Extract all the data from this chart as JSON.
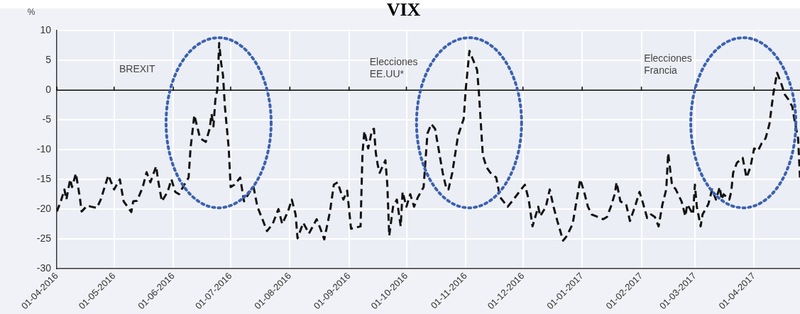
{
  "chart_data": {
    "type": "line",
    "title": "VIX",
    "ylabel": "%",
    "grid": true,
    "legend": false,
    "marker": "none",
    "line_style": "dashed",
    "xlim": [
      "2016-04-01",
      "2017-04-25"
    ],
    "xticks": [
      {
        "value": "2016-04-01",
        "label": "01-04-2016"
      },
      {
        "value": "2016-05-01",
        "label": "01-05-2016"
      },
      {
        "value": "2016-06-01",
        "label": "01-06-2016"
      },
      {
        "value": "2016-07-01",
        "label": "01-07-2016"
      },
      {
        "value": "2016-08-01",
        "label": "01-08-2016"
      },
      {
        "value": "2016-09-01",
        "label": "01-09-2016"
      },
      {
        "value": "2016-10-01",
        "label": "01-10-2016"
      },
      {
        "value": "2016-11-01",
        "label": "01-11-2016"
      },
      {
        "value": "2016-12-01",
        "label": "01-12-2016"
      },
      {
        "value": "2017-01-01",
        "label": "01-01-2017"
      },
      {
        "value": "2017-02-01",
        "label": "01-02-2017"
      },
      {
        "value": "2017-03-01",
        "label": "01-03-2017"
      },
      {
        "value": "2017-04-01",
        "label": "01-04-2017"
      }
    ],
    "ylim": [
      -30,
      10
    ],
    "yticks": [
      -30,
      -25,
      -20,
      -15,
      -10,
      -5,
      0,
      5,
      10
    ],
    "ref_lines": [
      {
        "axis": "y",
        "value": 0,
        "color": "#000000"
      }
    ],
    "annotations": [
      "BREXIT",
      "Elecciones\nEE.UU*",
      "Elecciones\nFrancia"
    ],
    "x": [
      "2016-04-01",
      "2016-04-03",
      "2016-04-05",
      "2016-04-06",
      "2016-04-08",
      "2016-04-09",
      "2016-04-11",
      "2016-04-13",
      "2016-04-14",
      "2016-04-17",
      "2016-04-19",
      "2016-04-22",
      "2016-04-24",
      "2016-04-28",
      "2016-05-01",
      "2016-05-04",
      "2016-05-06",
      "2016-05-10",
      "2016-05-11",
      "2016-05-13",
      "2016-05-16",
      "2016-05-18",
      "2016-05-20",
      "2016-05-23",
      "2016-05-24",
      "2016-05-26",
      "2016-05-29",
      "2016-05-31",
      "2016-06-02",
      "2016-06-04",
      "2016-06-06",
      "2016-06-09",
      "2016-06-10",
      "2016-06-12",
      "2016-06-15",
      "2016-06-18",
      "2016-06-20",
      "2016-06-21",
      "2016-06-22",
      "2016-06-23",
      "2016-06-24",
      "2016-06-25",
      "2016-06-26",
      "2016-06-27",
      "2016-06-28",
      "2016-06-30",
      "2016-07-01",
      "2016-07-03",
      "2016-07-06",
      "2016-07-08",
      "2016-07-11",
      "2016-07-13",
      "2016-07-15",
      "2016-07-18",
      "2016-07-20",
      "2016-07-23",
      "2016-07-26",
      "2016-07-28",
      "2016-07-31",
      "2016-08-02",
      "2016-08-04",
      "2016-08-05",
      "2016-08-08",
      "2016-08-11",
      "2016-08-15",
      "2016-08-17",
      "2016-08-19",
      "2016-08-22",
      "2016-08-24",
      "2016-08-26",
      "2016-08-29",
      "2016-08-31",
      "2016-09-02",
      "2016-09-07",
      "2016-09-08",
      "2016-09-09",
      "2016-09-11",
      "2016-09-13",
      "2016-09-14",
      "2016-09-15",
      "2016-09-16",
      "2016-09-17",
      "2016-09-20",
      "2016-09-21",
      "2016-09-22",
      "2016-09-24",
      "2016-09-26",
      "2016-09-28",
      "2016-09-29",
      "2016-10-01",
      "2016-10-03",
      "2016-10-05",
      "2016-10-07",
      "2016-10-10",
      "2016-10-12",
      "2016-10-14",
      "2016-10-16",
      "2016-10-18",
      "2016-10-20",
      "2016-10-22",
      "2016-10-23",
      "2016-10-25",
      "2016-10-28",
      "2016-10-31",
      "2016-11-01",
      "2016-11-03",
      "2016-11-05",
      "2016-11-07",
      "2016-11-08",
      "2016-11-10",
      "2016-11-12",
      "2016-11-14",
      "2016-11-17",
      "2016-11-19",
      "2016-11-23",
      "2016-11-26",
      "2016-11-30",
      "2016-12-02",
      "2016-12-04",
      "2016-12-06",
      "2016-12-09",
      "2016-12-10",
      "2016-12-13",
      "2016-12-15",
      "2016-12-17",
      "2016-12-19",
      "2016-12-22",
      "2016-12-24",
      "2016-12-27",
      "2016-12-29",
      "2016-12-31",
      "2017-01-02",
      "2017-01-04",
      "2017-01-06",
      "2017-01-09",
      "2017-01-12",
      "2017-01-14",
      "2017-01-16",
      "2017-01-18",
      "2017-01-19",
      "2017-01-21",
      "2017-01-24",
      "2017-01-26",
      "2017-01-29",
      "2017-01-31",
      "2017-02-02",
      "2017-02-04",
      "2017-02-06",
      "2017-02-08",
      "2017-02-10",
      "2017-02-12",
      "2017-02-14",
      "2017-02-15",
      "2017-02-17",
      "2017-02-19",
      "2017-02-22",
      "2017-02-24",
      "2017-02-25",
      "2017-02-28",
      "2017-03-01",
      "2017-03-02",
      "2017-03-04",
      "2017-03-05",
      "2017-03-08",
      "2017-03-10",
      "2017-03-12",
      "2017-03-14",
      "2017-03-15",
      "2017-03-16",
      "2017-03-19",
      "2017-03-20",
      "2017-03-21",
      "2017-03-23",
      "2017-03-26",
      "2017-03-28",
      "2017-03-30",
      "2017-04-01",
      "2017-04-03",
      "2017-04-05",
      "2017-04-07",
      "2017-04-09",
      "2017-04-11",
      "2017-04-13",
      "2017-04-15",
      "2017-04-17",
      "2017-04-19",
      "2017-04-21",
      "2017-04-22",
      "2017-04-24",
      "2017-04-25"
    ],
    "series": [
      {
        "color": "#111111",
        "values": [
          -20.4,
          -18.8,
          -16.7,
          -18.4,
          -15,
          -16.3,
          -14,
          -17.9,
          -20.4,
          -19.4,
          -19.6,
          -19.8,
          -18.4,
          -14.3,
          -16.7,
          -15,
          -18.7,
          -20.5,
          -18.7,
          -18.6,
          -16.3,
          -13.8,
          -15.5,
          -12.8,
          -15.1,
          -18.7,
          -17.1,
          -15,
          -17.1,
          -17.5,
          -16.3,
          -14.7,
          -9.8,
          -4.2,
          -8.1,
          -8.7,
          -6.5,
          -4,
          -6.1,
          -1.6,
          0,
          7.9,
          4.6,
          2.5,
          -2.8,
          -9.8,
          -16.3,
          -15.9,
          -14.7,
          -18.7,
          -17.1,
          -16.3,
          -19.6,
          -22,
          -23.7,
          -22.5,
          -20,
          -22.5,
          -20.4,
          -18.4,
          -20.9,
          -24.9,
          -22.3,
          -24.1,
          -21.7,
          -23.3,
          -25.1,
          -20.4,
          -15.9,
          -15.5,
          -18.4,
          -16.9,
          -23.3,
          -22.9,
          -10.6,
          -6.9,
          -9.8,
          -6.7,
          -6.5,
          -10.6,
          -12.6,
          -13.9,
          -11.8,
          -15.9,
          -24.5,
          -19.6,
          -18.4,
          -22.9,
          -17.1,
          -19.6,
          -17.5,
          -19.6,
          -18,
          -16.3,
          -7.3,
          -5.7,
          -6.5,
          -10.2,
          -13.9,
          -16.7,
          -16.7,
          -13.9,
          -7.7,
          -4.8,
          0,
          6.6,
          5,
          3.4,
          -0.7,
          -11,
          -13,
          -13.9,
          -14.7,
          -18,
          -19.6,
          -18.4,
          -16.7,
          -15.9,
          -18.4,
          -22.9,
          -19.6,
          -21.2,
          -19.6,
          -16.7,
          -19.6,
          -22,
          -25.3,
          -24.5,
          -22.5,
          -18.7,
          -15,
          -17.1,
          -19.6,
          -20.9,
          -21.3,
          -21.7,
          -21.3,
          -19.6,
          -17.5,
          -15.5,
          -18.7,
          -19.2,
          -22,
          -19.2,
          -17.1,
          -19.2,
          -21.5,
          -20.9,
          -21.3,
          -22.9,
          -19.2,
          -16.7,
          -10.6,
          -15.9,
          -16.7,
          -18.7,
          -21.2,
          -19.2,
          -20.9,
          -15.9,
          -19.6,
          -22.9,
          -20.9,
          -19.2,
          -16.7,
          -18.4,
          -16.3,
          -18.4,
          -17.5,
          -18.4,
          -17.1,
          -13.9,
          -12.2,
          -11.4,
          -14.7,
          -13,
          -9.8,
          -10.2,
          -8.9,
          -8.1,
          -5.7,
          -0.7,
          2.9,
          1.3,
          -0.7,
          -1.6,
          -2.8,
          -4.8,
          -8.1,
          -14.7
        ]
      }
    ]
  }
}
